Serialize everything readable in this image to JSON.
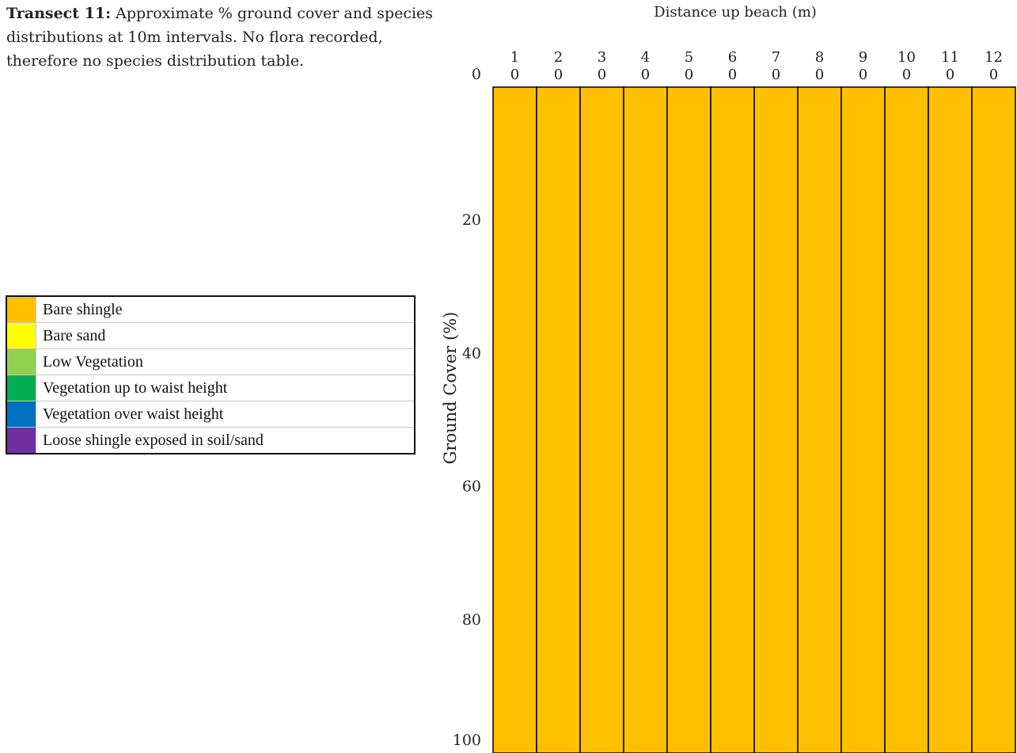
{
  "caption": {
    "bold": "Transect 11:",
    "text": " Approximate % ground cover and species distributions at 10m intervals. No flora recorded, therefore no species distribution table."
  },
  "legend": [
    {
      "label": "Bare shingle",
      "color": "#ffc000"
    },
    {
      "label": "Bare sand",
      "color": "#ffff00"
    },
    {
      "label": "Low Vegetation",
      "color": "#92d050"
    },
    {
      "label": "Vegetation up to waist height",
      "color": "#00b050"
    },
    {
      "label": "Vegetation over waist height",
      "color": "#0070c0"
    },
    {
      "label": "Loose shingle exposed in soil/sand",
      "color": "#7030a0"
    }
  ],
  "chart_data": {
    "type": "bar",
    "stacked": true,
    "xlabel": "Distance up beach (m)",
    "ylabel": "Ground Cover (%)",
    "x_axis_position": "top",
    "categories": [
      "1",
      "2",
      "3",
      "4",
      "5",
      "6",
      "7",
      "8",
      "9",
      "10",
      "11",
      "12"
    ],
    "category_row2": [
      "0",
      "0",
      "0",
      "0",
      "0",
      "0",
      "0",
      "0",
      "0",
      "0",
      "0",
      "0"
    ],
    "yticks": [
      0,
      20,
      40,
      60,
      80,
      100
    ],
    "ylim": [
      0,
      100
    ],
    "y_inverted": true,
    "grid": false,
    "series": [
      {
        "name": "Bare shingle",
        "color": "#ffc000",
        "values": [
          100,
          100,
          100,
          100,
          100,
          100,
          100,
          100,
          100,
          100,
          100,
          100
        ]
      }
    ]
  }
}
